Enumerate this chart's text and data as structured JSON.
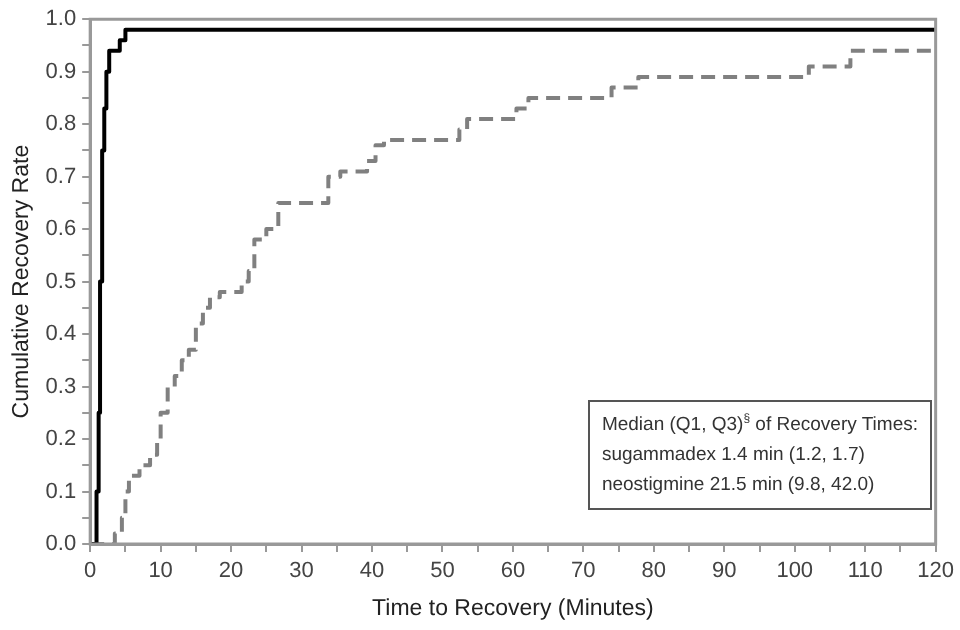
{
  "chart_data": {
    "type": "step",
    "xlabel": "Time to Recovery (Minutes)",
    "ylabel": "Cumulative Recovery Rate",
    "annotations": [
      "Median (Q1, Q3)$^{§}$ of Recovery Times:",
      "sugammadex 1.4 min (1.2, 1.7)",
      "neostigmine 21.5 min (9.8, 42.0)"
    ],
    "series": [
      {
        "color": "#000000",
        "line_style": "solid",
        "x": [
          0,
          0.9,
          1.2,
          1.4,
          1.7,
          2.0,
          2.3,
          2.7,
          4.2,
          5,
          120
        ],
        "values": [
          0,
          0.1,
          0.25,
          0.5,
          0.75,
          0.83,
          0.9,
          0.94,
          0.96,
          0.98,
          0.98
        ]
      },
      {
        "color": "#808080",
        "line_style": "dashed",
        "x": [
          0,
          3.5,
          4.5,
          5,
          5.5,
          7,
          8.5,
          9.5,
          10,
          11,
          12,
          13,
          14,
          15,
          16,
          17,
          18.4,
          21.5,
          22.5,
          23.3,
          25,
          26.7,
          33.8,
          35.5,
          39.3,
          40.5,
          41.7,
          52.4,
          53.5,
          54.4,
          60.5,
          62.2,
          74,
          77.8,
          102,
          107.9,
          120
        ],
        "values": [
          0,
          0.02,
          0.05,
          0.1,
          0.13,
          0.15,
          0.17,
          0.2,
          0.25,
          0.3,
          0.32,
          0.35,
          0.37,
          0.42,
          0.45,
          0.47,
          0.48,
          0.5,
          0.52,
          0.58,
          0.6,
          0.65,
          0.7,
          0.71,
          0.73,
          0.76,
          0.77,
          0.79,
          0.81,
          0.81,
          0.83,
          0.85,
          0.87,
          0.89,
          0.91,
          0.94,
          0.94
        ]
      }
    ],
    "xlim": [
      0,
      120
    ],
    "xticks": [
      0,
      {
        "value": 5,
        "label": null
      },
      10,
      {
        "value": 15,
        "label": null
      },
      20,
      {
        "value": 25,
        "label": null
      },
      30,
      {
        "value": 35,
        "label": null
      },
      40,
      {
        "value": 45,
        "label": null
      },
      50,
      {
        "value": 55,
        "label": null
      },
      60,
      {
        "value": 65,
        "label": null
      },
      70,
      {
        "value": 75,
        "label": null
      },
      80,
      {
        "value": 85,
        "label": null
      },
      90,
      {
        "value": 95,
        "label": null
      },
      100,
      {
        "value": 105,
        "label": null
      },
      110,
      {
        "value": 115,
        "label": null
      },
      120
    ],
    "ylim": [
      0,
      1
    ],
    "yticks": [
      {
        "value": 0,
        "label": "0.0"
      },
      {
        "value": 0.05,
        "label": null
      },
      0.1,
      {
        "value": 0.15,
        "label": null
      },
      0.2,
      {
        "value": 0.25,
        "label": null
      },
      0.3,
      {
        "value": 0.35,
        "label": null
      },
      0.4,
      {
        "value": 0.45,
        "label": null
      },
      0.5,
      {
        "value": 0.55,
        "label": null
      },
      0.6,
      {
        "value": 0.65,
        "label": null
      },
      0.7,
      {
        "value": 0.75,
        "label": null
      },
      0.8,
      {
        "value": 0.85,
        "label": null
      },
      0.9,
      {
        "value": 0.95,
        "label": null
      },
      {
        "value": 1,
        "label": "1.0"
      }
    ],
    "grid": false,
    "legend": false
  }
}
